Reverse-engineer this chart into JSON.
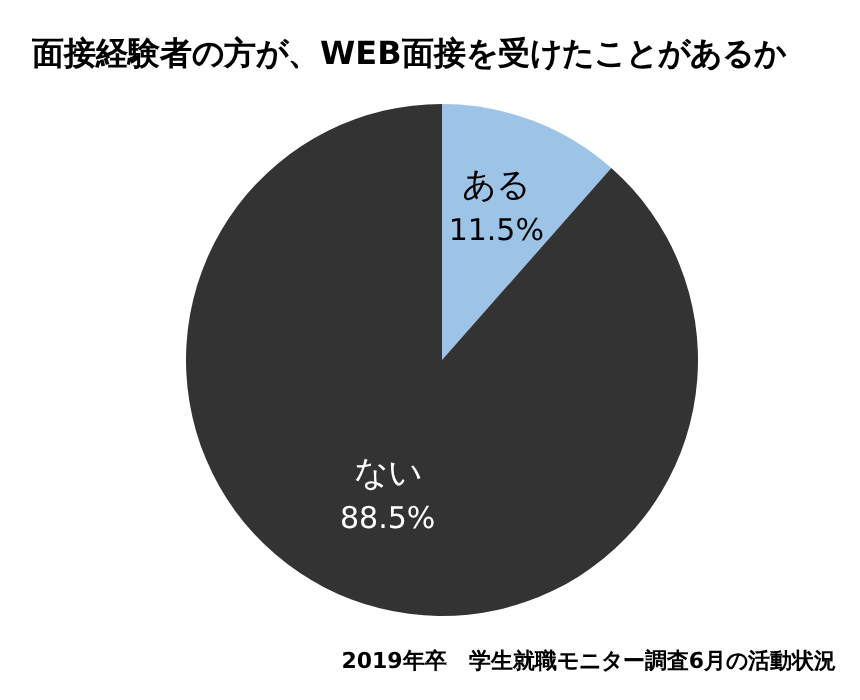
{
  "chart_data": {
    "type": "pie",
    "title": "面接経験者の方が、WEB面接を受けたことがあるか",
    "categories": [
      "ある",
      "ない"
    ],
    "values": [
      11.5,
      88.5
    ],
    "value_labels": [
      "11.5%",
      "88.5%"
    ],
    "colors": [
      "#9dc3e6",
      "#333333"
    ],
    "annotations": [
      "2019年卒　学生就職モニター調査6月の活動状況"
    ]
  }
}
